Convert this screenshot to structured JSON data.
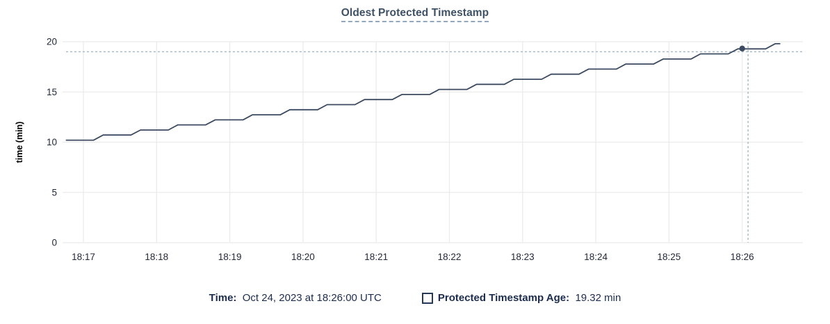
{
  "title": "Oldest Protected Timestamp",
  "legend": {
    "time_label": "Time:",
    "time_value": "Oct 24, 2023 at 18:26:00 UTC",
    "series_label": "Protected Timestamp Age:",
    "series_value": "19.32 min",
    "swatch_icon": "series-checkbox-swatch"
  },
  "colors": {
    "line": "#3b4a60",
    "hover_dot": "#3b4a60",
    "grid": "#ebebeb",
    "crosshair": "#a4b7c6",
    "tick_text": "#23293a",
    "axis_label_text": "#000000",
    "title_text": "#3e5167",
    "legend_text": "#1c2c4f",
    "background": "#ffffff"
  },
  "chart_data": {
    "type": "line",
    "title": "Oldest Protected Timestamp",
    "xlabel": "",
    "ylabel": "time (min)",
    "ylim": [
      0,
      20
    ],
    "yticks": [
      0,
      5,
      10,
      15,
      20
    ],
    "xticks": [
      "18:17",
      "18:18",
      "18:19",
      "18:20",
      "18:21",
      "18:22",
      "18:23",
      "18:24",
      "18:25",
      "18:26"
    ],
    "grid": true,
    "legend_position": "bottom",
    "series": [
      {
        "name": "Protected Timestamp Age",
        "unit": "min",
        "points_note": "x = minutes after 18:17 UTC, y = age in minutes",
        "points": [
          [
            -0.24,
            10.2
          ],
          [
            0.14,
            10.2
          ],
          [
            0.27,
            10.71
          ],
          [
            0.65,
            10.71
          ],
          [
            0.78,
            11.21
          ],
          [
            1.16,
            11.21
          ],
          [
            1.29,
            11.72
          ],
          [
            1.67,
            11.72
          ],
          [
            1.8,
            12.22
          ],
          [
            2.18,
            12.22
          ],
          [
            2.31,
            12.73
          ],
          [
            2.69,
            12.73
          ],
          [
            2.82,
            13.23
          ],
          [
            3.2,
            13.23
          ],
          [
            3.33,
            13.74
          ],
          [
            3.71,
            13.74
          ],
          [
            3.84,
            14.24
          ],
          [
            4.22,
            14.24
          ],
          [
            4.35,
            14.75
          ],
          [
            4.73,
            14.75
          ],
          [
            4.86,
            15.25
          ],
          [
            5.24,
            15.25
          ],
          [
            5.37,
            15.76
          ],
          [
            5.75,
            15.76
          ],
          [
            5.88,
            16.26
          ],
          [
            6.26,
            16.26
          ],
          [
            6.39,
            16.77
          ],
          [
            6.77,
            16.77
          ],
          [
            6.9,
            17.27
          ],
          [
            7.28,
            17.27
          ],
          [
            7.41,
            17.78
          ],
          [
            7.79,
            17.78
          ],
          [
            7.92,
            18.28
          ],
          [
            8.3,
            18.28
          ],
          [
            8.43,
            18.79
          ],
          [
            8.81,
            18.79
          ],
          [
            8.94,
            19.29
          ],
          [
            9.32,
            19.29
          ],
          [
            9.45,
            19.8
          ],
          [
            9.52,
            19.8
          ]
        ]
      }
    ],
    "hover": {
      "x_tick_label": "18:26",
      "t_min": 9.0,
      "value": 19.32,
      "crosshair_t_min": 9.08,
      "crosshair_value": 19.0
    }
  }
}
